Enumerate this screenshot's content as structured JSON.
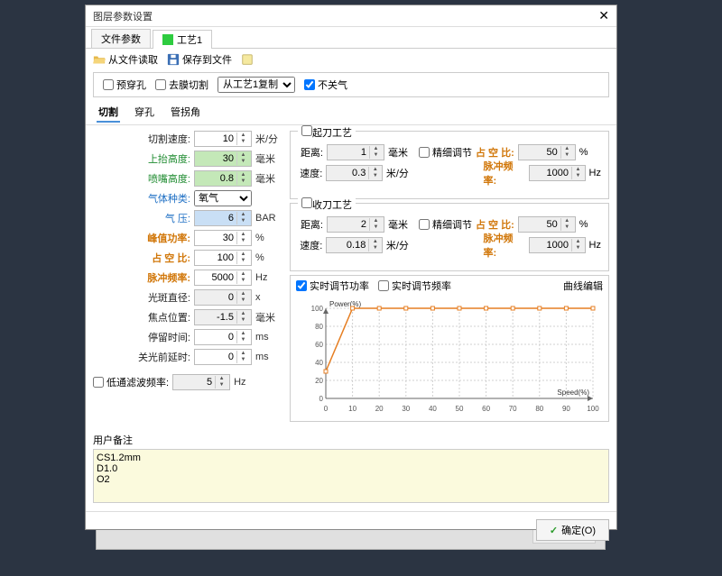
{
  "window": {
    "title": "图层参数设置"
  },
  "tabs1": {
    "file": "文件参数",
    "tech": "工艺1",
    "tech_color": "#2ecc40"
  },
  "toolbar": {
    "read": "从文件读取",
    "save": "保存到文件"
  },
  "toprow": {
    "prepierce": "预穿孔",
    "prepierce_checked": false,
    "film": "去膜切割",
    "film_checked": false,
    "copy_sel": "从工艺1复制",
    "nogas": "不关气",
    "nogas_checked": true
  },
  "tabs2": {
    "cut": "切割",
    "pierce": "穿孔",
    "corner": "管拐角",
    "active": "cut"
  },
  "left": [
    {
      "label": "切割速度:",
      "cls": "",
      "val": "10",
      "unit": "米/分",
      "bg": ""
    },
    {
      "label": "上抬高度:",
      "cls": "green",
      "val": "30",
      "unit": "毫米",
      "bg": "green"
    },
    {
      "label": "喷嘴高度:",
      "cls": "green",
      "val": "0.8",
      "unit": "毫米",
      "bg": "green"
    },
    {
      "label": "气体种类:",
      "cls": "blue",
      "val": "氧气",
      "unit": "",
      "bg": "select"
    },
    {
      "label": "气    压:",
      "cls": "blue",
      "val": "6",
      "unit": "BAR",
      "bg": "blue"
    },
    {
      "label": "峰值功率:",
      "cls": "orange",
      "val": "30",
      "unit": "%",
      "bg": ""
    },
    {
      "label": "占 空 比:",
      "cls": "orange",
      "val": "100",
      "unit": "%",
      "bg": ""
    },
    {
      "label": "脉冲频率:",
      "cls": "orange",
      "val": "5000",
      "unit": "Hz",
      "bg": ""
    },
    {
      "label": "光斑直径:",
      "cls": "",
      "val": "0",
      "unit": "x",
      "bg": "gray"
    },
    {
      "label": "焦点位置:",
      "cls": "",
      "val": "-1.5",
      "unit": "毫米",
      "bg": "gray"
    },
    {
      "label": "停留时间:",
      "cls": "",
      "val": "0",
      "unit": "ms",
      "bg": ""
    },
    {
      "label": "关光前延时:",
      "cls": "",
      "val": "0",
      "unit": "ms",
      "bg": ""
    }
  ],
  "lowpass": {
    "label": "低通滤波频率:",
    "val": "5",
    "unit": "Hz",
    "checked": false
  },
  "groups": {
    "start": {
      "title": "起刀工艺",
      "checked": false,
      "dist_l": "距离:",
      "dist_v": "1",
      "dist_u": "毫米",
      "fine": "精细调节",
      "fine_checked": false,
      "duty_l": "占 空 比:",
      "duty_v": "50",
      "duty_u": "%",
      "spd_l": "速度:",
      "spd_v": "0.3",
      "spd_u": "米/分",
      "freq_l": "脉冲频率:",
      "freq_v": "1000",
      "freq_u": "Hz"
    },
    "end": {
      "title": "收刀工艺",
      "checked": false,
      "dist_l": "距离:",
      "dist_v": "2",
      "dist_u": "毫米",
      "fine": "精细调节",
      "fine_checked": false,
      "duty_l": "占 空 比:",
      "duty_v": "50",
      "duty_u": "%",
      "spd_l": "速度:",
      "spd_v": "0.18",
      "spd_u": "米/分",
      "freq_l": "脉冲频率:",
      "freq_v": "1000",
      "freq_u": "Hz"
    }
  },
  "chart": {
    "power_cb": "实时调节功率",
    "power_checked": true,
    "freq_cb": "实时调节频率",
    "freq_checked": false,
    "edit": "曲线编辑",
    "ylabel": "Power(%)",
    "xlabel": "Speed(%)",
    "ymin": 0,
    "ymax": 100,
    "xmin": 0,
    "xmax": 100,
    "yticks": [
      0,
      20,
      40,
      60,
      80,
      100
    ],
    "xticks": [
      0,
      10,
      20,
      30,
      40,
      50,
      60,
      70,
      80,
      90,
      100
    ],
    "series_x": [
      0,
      10,
      20,
      30,
      40,
      50,
      60,
      70,
      80,
      90,
      100
    ],
    "series_y": [
      30,
      100,
      100,
      100,
      100,
      100,
      100,
      100,
      100,
      100,
      100
    ],
    "line_color": "#e67e22",
    "marker_color": "#e67e22",
    "grid_color": "#d0d0d0",
    "axis_color": "#666"
  },
  "notes": {
    "label": "用户备注",
    "text": "CS1.2mm\nD1.0\nO2"
  },
  "footer": {
    "ok": "确定(O)"
  }
}
